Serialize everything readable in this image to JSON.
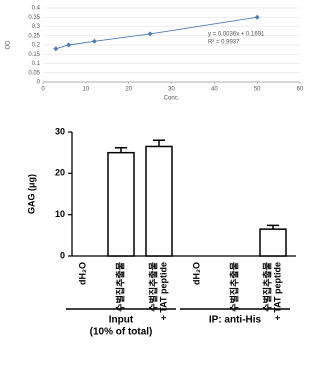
{
  "chart_data": [
    {
      "type": "scatter",
      "ylabel": "OD",
      "xlabel": "Conc.",
      "x": [
        3,
        6,
        12,
        25,
        50
      ],
      "values": [
        0.18,
        0.2,
        0.22,
        0.26,
        0.35
      ],
      "color": "#4a7ebb",
      "xlim": [
        0,
        60
      ],
      "xticks": [
        0,
        10,
        20,
        30,
        40,
        50,
        60
      ],
      "ylim": [
        0,
        0.4
      ],
      "yticks": [
        0,
        0.05,
        0.1,
        0.15,
        0.2,
        0.25,
        0.3,
        0.35,
        0.4
      ],
      "grid": true,
      "annotations": [
        "y = 0.0036x + 0.1691",
        "R² = 0.9937"
      ]
    },
    {
      "type": "bar",
      "ylabel": "GAG (μg)",
      "categories": [
        [
          "dH₂O"
        ],
        [
          "수벌집추출물"
        ],
        [
          "수벌집추출물",
          "+ TAT peptide"
        ],
        [
          "dH₂O"
        ],
        [
          "수벌집추출물"
        ],
        [
          "수벌집추출물",
          "+ TAT peptide"
        ]
      ],
      "values": [
        0,
        25,
        26.5,
        0,
        0,
        6.5
      ],
      "errors": [
        null,
        1.2,
        1.5,
        null,
        null,
        0.9
      ],
      "color": "#ffffff",
      "ylim": [
        0,
        30
      ],
      "yticks": [
        0,
        10,
        20,
        30
      ],
      "grid": false,
      "groups": [
        [
          "Input",
          "(10% of total)"
        ],
        [
          "IP: anti-His"
        ]
      ]
    }
  ]
}
